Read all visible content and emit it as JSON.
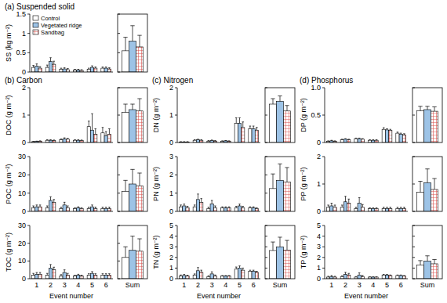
{
  "chart_data": [
    {
      "type": "bar",
      "title": "(a) Suspended solid",
      "y_label": "SS (kg m⁻²)",
      "categories": [
        "1",
        "2",
        "3",
        "4",
        "5",
        "6"
      ],
      "tick_labels": "y",
      "legend": "upper left",
      "ylim": [
        0,
        1.5
      ],
      "yticks": [
        0,
        0.5,
        1,
        1.5
      ],
      "series": [
        {
          "name": "Control",
          "color": "#ffffff",
          "values": [
            0.12,
            0.12,
            0.07,
            0.05,
            0.07,
            0.1
          ],
          "errors": [
            0.05,
            0.06,
            0.03,
            0.02,
            0.03,
            0.03
          ],
          "sum_value": 0.55,
          "sum_error": 0.35
        },
        {
          "name": "Vegetated ridge",
          "color": "#9dc3e6",
          "values": [
            0.15,
            0.27,
            0.08,
            0.05,
            0.12,
            0.1
          ],
          "errors": [
            0.06,
            0.1,
            0.03,
            0.02,
            0.04,
            0.03
          ],
          "sum_value": 0.8,
          "sum_error": 0.4
        },
        {
          "name": "Sandbag",
          "color": "#d9534f",
          "values": [
            0.1,
            0.2,
            0.06,
            0.04,
            0.1,
            0.08
          ],
          "errors": [
            0.04,
            0.08,
            0.03,
            0.02,
            0.03,
            0.03
          ],
          "sum_value": 0.65,
          "sum_error": 0.3
        }
      ]
    },
    {
      "type": "bar",
      "title": "(b) Carbon",
      "y_label": "DOC (g m⁻²)",
      "categories": [
        "1",
        "2",
        "3",
        "4",
        "5",
        "6"
      ],
      "tick_labels": "y",
      "ylim": [
        0,
        2
      ],
      "yticks": [
        0,
        1,
        2
      ],
      "series": [
        {
          "color": "#ffffff",
          "values": [
            0.03,
            0.08,
            0.1,
            0.08,
            0.58,
            0.35
          ],
          "errors": [
            0.01,
            0.02,
            0.03,
            0.02,
            0.2,
            0.2
          ],
          "sum_value": 1.1,
          "sum_error": 0.3
        },
        {
          "color": "#9dc3e6",
          "values": [
            0.04,
            0.08,
            0.13,
            0.08,
            0.45,
            0.25
          ],
          "errors": [
            0.01,
            0.02,
            0.04,
            0.02,
            0.6,
            0.15
          ],
          "sum_value": 1.2,
          "sum_error": 0.2
        },
        {
          "color": "#d9534f",
          "values": [
            0.05,
            0.07,
            0.12,
            0.07,
            0.3,
            0.3
          ],
          "errors": [
            0.01,
            0.02,
            0.03,
            0.02,
            0.2,
            0.2
          ],
          "sum_value": 1.15,
          "sum_error": 0.45
        }
      ]
    },
    {
      "type": "bar",
      "y_label": "POC (g m⁻²)",
      "categories": [
        "1",
        "2",
        "3",
        "4",
        "5",
        "6"
      ],
      "tick_labels": "y",
      "ylim": [
        0,
        30
      ],
      "yticks": [
        0,
        10,
        20,
        30
      ],
      "series": [
        {
          "color": "#ffffff",
          "values": [
            2,
            2,
            1.5,
            1.5,
            1.5,
            1.5
          ],
          "errors": [
            1,
            1,
            0.8,
            0.5,
            0.8,
            0.8
          ],
          "sum_value": 11,
          "sum_error": 6
        },
        {
          "color": "#9dc3e6",
          "values": [
            2.5,
            6,
            3.5,
            2,
            2.5,
            1.5
          ],
          "errors": [
            1,
            2,
            1.5,
            0.5,
            1,
            0.8
          ],
          "sum_value": 15,
          "sum_error": 8
        },
        {
          "color": "#d9534f",
          "values": [
            2.5,
            5,
            2,
            1.5,
            1.5,
            1.5
          ],
          "errors": [
            1,
            1.5,
            1,
            0.5,
            0.8,
            0.8
          ],
          "sum_value": 14,
          "sum_error": 7
        }
      ]
    },
    {
      "type": "bar",
      "y_label": "TOC (g m⁻²)",
      "x_label": "Event number",
      "sum_label": "Sum",
      "categories": [
        "1",
        "2",
        "3",
        "4",
        "5",
        "6"
      ],
      "ylim": [
        0,
        30
      ],
      "yticks": [
        0,
        10,
        20,
        30
      ],
      "series": [
        {
          "color": "#ffffff",
          "values": [
            2,
            2,
            1.5,
            1.5,
            2,
            2
          ],
          "errors": [
            1,
            1,
            0.8,
            0.5,
            0.8,
            0.8
          ],
          "sum_value": 12,
          "sum_error": 6
        },
        {
          "color": "#9dc3e6",
          "values": [
            2.5,
            6,
            3.5,
            2,
            3,
            2
          ],
          "errors": [
            1,
            2,
            1.5,
            0.5,
            1,
            0.8
          ],
          "sum_value": 16,
          "sum_error": 8
        },
        {
          "color": "#d9534f",
          "values": [
            2.5,
            5,
            2,
            1.5,
            2,
            2
          ],
          "errors": [
            1,
            1.5,
            1,
            0.5,
            0.8,
            0.8
          ],
          "sum_value": 15.5,
          "sum_error": 7
        }
      ]
    },
    {
      "type": "bar",
      "title": "(c) Nitrogen",
      "y_label": "DN (g m⁻²)",
      "categories": [
        "1",
        "2",
        "3",
        "4",
        "5",
        "6"
      ],
      "tick_labels": "y",
      "ylim": [
        0,
        2
      ],
      "yticks": [
        0,
        1,
        2
      ],
      "series": [
        {
          "color": "#ffffff",
          "values": [
            0.02,
            0.08,
            0.05,
            0.05,
            0.7,
            0.5
          ],
          "errors": [
            0.01,
            0.02,
            0.02,
            0.01,
            0.2,
            0.1
          ],
          "sum_value": 1.4,
          "sum_error": 0.2
        },
        {
          "color": "#9dc3e6",
          "values": [
            0.02,
            0.1,
            0.07,
            0.06,
            0.7,
            0.5
          ],
          "errors": [
            0.01,
            0.02,
            0.02,
            0.01,
            0.2,
            0.1
          ],
          "sum_value": 1.5,
          "sum_error": 0.2
        },
        {
          "color": "#d9534f",
          "values": [
            0.02,
            0.08,
            0.05,
            0.05,
            0.55,
            0.45
          ],
          "errors": [
            0.01,
            0.02,
            0.02,
            0.01,
            0.2,
            0.1
          ],
          "sum_value": 1.15,
          "sum_error": 0.2
        }
      ]
    },
    {
      "type": "bar",
      "y_label": "PN (g m⁻²)",
      "categories": [
        "1",
        "2",
        "3",
        "4",
        "5",
        "6"
      ],
      "tick_labels": "y",
      "ylim": [
        0,
        3
      ],
      "yticks": [
        0,
        1,
        2,
        3
      ],
      "series": [
        {
          "color": "#ffffff",
          "values": [
            0.25,
            0.25,
            0.15,
            0.2,
            0.2,
            0.2
          ],
          "errors": [
            0.1,
            0.1,
            0.08,
            0.05,
            0.08,
            0.05
          ],
          "sum_value": 1.25,
          "sum_error": 0.8
        },
        {
          "color": "#9dc3e6",
          "values": [
            0.3,
            0.65,
            0.4,
            0.2,
            0.3,
            0.2
          ],
          "errors": [
            0.1,
            0.3,
            0.2,
            0.05,
            0.1,
            0.05
          ],
          "sum_value": 1.7,
          "sum_error": 0.9
        },
        {
          "color": "#d9534f",
          "values": [
            0.2,
            0.5,
            0.2,
            0.2,
            0.2,
            0.15
          ],
          "errors": [
            0.08,
            0.2,
            0.1,
            0.05,
            0.08,
            0.05
          ],
          "sum_value": 1.6,
          "sum_error": 0.8
        }
      ]
    },
    {
      "type": "bar",
      "y_label": "TN (g m⁻²)",
      "x_label": "Event number",
      "sum_label": "Sum",
      "categories": [
        "1",
        "2",
        "3",
        "4",
        "5",
        "6"
      ],
      "ylim": [
        0,
        5
      ],
      "yticks": [
        0,
        1,
        2,
        3,
        4,
        5
      ],
      "series": [
        {
          "color": "#ffffff",
          "values": [
            0.25,
            0.35,
            0.2,
            0.25,
            0.9,
            0.7
          ],
          "errors": [
            0.1,
            0.1,
            0.08,
            0.05,
            0.2,
            0.1
          ],
          "sum_value": 2.65,
          "sum_error": 0.8
        },
        {
          "color": "#9dc3e6",
          "values": [
            0.3,
            0.75,
            0.45,
            0.25,
            1,
            0.7
          ],
          "errors": [
            0.1,
            0.3,
            0.2,
            0.05,
            0.2,
            0.1
          ],
          "sum_value": 3,
          "sum_error": 0.9
        },
        {
          "color": "#d9534f",
          "values": [
            0.25,
            0.6,
            0.25,
            0.25,
            0.8,
            0.6
          ],
          "errors": [
            0.08,
            0.2,
            0.1,
            0.05,
            0.2,
            0.1
          ],
          "sum_value": 2.7,
          "sum_error": 0.9
        }
      ]
    },
    {
      "type": "bar",
      "title": "(d) Phosphorus",
      "y_label": "DP (g m⁻²)",
      "categories": [
        "1",
        "2",
        "3",
        "4",
        "5",
        "6"
      ],
      "tick_labels": "y",
      "ylim": [
        0,
        1
      ],
      "yticks": [
        0,
        0.5,
        {
          "value": 1,
          "label": "1.0"
        }
      ],
      "series": [
        {
          "color": "#ffffff",
          "values": [
            0.02,
            0.05,
            0.07,
            0.04,
            0.24,
            0.17
          ],
          "errors": [
            0.01,
            0.01,
            0.01,
            0.01,
            0.03,
            0.02
          ],
          "sum_value": 0.58,
          "sum_error": 0.08
        },
        {
          "color": "#9dc3e6",
          "values": [
            0.03,
            0.06,
            0.07,
            0.04,
            0.23,
            0.15
          ],
          "errors": [
            0.01,
            0.01,
            0.01,
            0.01,
            0.02,
            0.02
          ],
          "sum_value": 0.6,
          "sum_error": 0.06
        },
        {
          "color": "#d9534f",
          "values": [
            0.02,
            0.05,
            0.06,
            0.04,
            0.22,
            0.14
          ],
          "errors": [
            0.01,
            0.01,
            0.01,
            0.01,
            0.02,
            0.02
          ],
          "sum_value": 0.57,
          "sum_error": 0.08
        }
      ]
    },
    {
      "type": "bar",
      "y_label": "PP (g m⁻²)",
      "categories": [
        "1",
        "2",
        "3",
        "4",
        "5",
        "6"
      ],
      "tick_labels": "y",
      "ylim": [
        0,
        2
      ],
      "yticks": [
        0,
        1,
        2
      ],
      "series": [
        {
          "color": "#ffffff",
          "values": [
            0.15,
            0.15,
            0.1,
            0.1,
            0.1,
            0.1
          ],
          "errors": [
            0.08,
            0.08,
            0.05,
            0.03,
            0.05,
            0.05
          ],
          "sum_value": 0.7,
          "sum_error": 0.4
        },
        {
          "color": "#9dc3e6",
          "values": [
            0.2,
            0.35,
            0.3,
            0.1,
            0.1,
            0.1
          ],
          "errors": [
            0.1,
            0.2,
            0.2,
            0.03,
            0.05,
            0.05
          ],
          "sum_value": 1.05,
          "sum_error": 0.5
        },
        {
          "color": "#d9534f",
          "values": [
            0.15,
            0.3,
            0.15,
            0.1,
            0.1,
            0.1
          ],
          "errors": [
            0.08,
            0.15,
            0.1,
            0.03,
            0.05,
            0.05
          ],
          "sum_value": 0.8,
          "sum_error": 0.4
        }
      ]
    },
    {
      "type": "bar",
      "y_label": "TP (g m⁻²)",
      "x_label": "Event number",
      "sum_label": "Sum",
      "categories": [
        "1",
        "2",
        "3",
        "4",
        "5",
        "6"
      ],
      "ylim": [
        0,
        5
      ],
      "yticks": [
        0,
        1,
        2,
        3,
        4,
        5
      ],
      "series": [
        {
          "color": "#ffffff",
          "values": [
            0.15,
            0.2,
            0.15,
            0.15,
            0.35,
            0.3
          ],
          "errors": [
            0.08,
            0.08,
            0.05,
            0.03,
            0.05,
            0.05
          ],
          "sum_value": 1.3,
          "sum_error": 0.4
        },
        {
          "color": "#9dc3e6",
          "values": [
            0.2,
            0.4,
            0.35,
            0.15,
            0.35,
            0.3
          ],
          "errors": [
            0.1,
            0.2,
            0.2,
            0.03,
            0.05,
            0.05
          ],
          "sum_value": 1.65,
          "sum_error": 0.5
        },
        {
          "color": "#d9534f",
          "values": [
            0.15,
            0.35,
            0.2,
            0.15,
            0.3,
            0.25
          ],
          "errors": [
            0.08,
            0.15,
            0.1,
            0.03,
            0.05,
            0.05
          ],
          "sum_value": 1.4,
          "sum_error": 0.4
        }
      ]
    }
  ]
}
